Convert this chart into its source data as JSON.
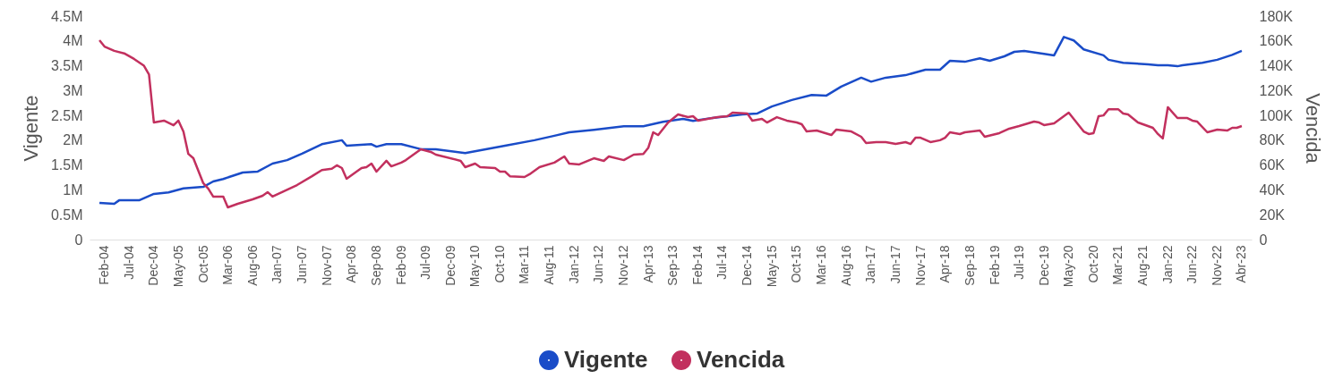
{
  "chart_data": {
    "type": "line",
    "ylabel": "Vigente",
    "y2label": "Vencida",
    "legend": "bottom",
    "xlim": [
      "2003-11",
      "2023-06"
    ],
    "xticks": [
      {
        "value": "2004-02",
        "label": "Feb-04"
      },
      {
        "value": "2004-07",
        "label": "Jul-04"
      },
      {
        "value": "2004-12",
        "label": "Dec-04"
      },
      {
        "value": "2005-05",
        "label": "May-05"
      },
      {
        "value": "2005-10",
        "label": "Oct-05"
      },
      {
        "value": "2006-03",
        "label": "Mar-06"
      },
      {
        "value": "2006-08",
        "label": "Aug-06"
      },
      {
        "value": "2007-01",
        "label": "Jan-07"
      },
      {
        "value": "2007-06",
        "label": "Jun-07"
      },
      {
        "value": "2007-11",
        "label": "Nov-07"
      },
      {
        "value": "2008-04",
        "label": "Apr-08"
      },
      {
        "value": "2008-09",
        "label": "Sep-08"
      },
      {
        "value": "2009-02",
        "label": "Feb-09"
      },
      {
        "value": "2009-07",
        "label": "Jul-09"
      },
      {
        "value": "2009-12",
        "label": "Dec-09"
      },
      {
        "value": "2010-05",
        "label": "May-10"
      },
      {
        "value": "2010-10",
        "label": "Oct-10"
      },
      {
        "value": "2011-03",
        "label": "Mar-11"
      },
      {
        "value": "2011-08",
        "label": "Aug-11"
      },
      {
        "value": "2012-01",
        "label": "Jan-12"
      },
      {
        "value": "2012-06",
        "label": "Jun-12"
      },
      {
        "value": "2012-11",
        "label": "Nov-12"
      },
      {
        "value": "2013-04",
        "label": "Apr-13"
      },
      {
        "value": "2013-09",
        "label": "Sep-13"
      },
      {
        "value": "2014-02",
        "label": "Feb-14"
      },
      {
        "value": "2014-07",
        "label": "Jul-14"
      },
      {
        "value": "2014-12",
        "label": "Dec-14"
      },
      {
        "value": "2015-05",
        "label": "May-15"
      },
      {
        "value": "2015-10",
        "label": "Oct-15"
      },
      {
        "value": "2016-03",
        "label": "Mar-16"
      },
      {
        "value": "2016-08",
        "label": "Aug-16"
      },
      {
        "value": "2017-01",
        "label": "Jan-17"
      },
      {
        "value": "2017-06",
        "label": "Jun-17"
      },
      {
        "value": "2017-11",
        "label": "Nov-17"
      },
      {
        "value": "2018-04",
        "label": "Apr-18"
      },
      {
        "value": "2018-09",
        "label": "Sep-18"
      },
      {
        "value": "2019-02",
        "label": "Feb-19"
      },
      {
        "value": "2019-07",
        "label": "Jul-19"
      },
      {
        "value": "2019-12",
        "label": "Dec-19"
      },
      {
        "value": "2020-05",
        "label": "May-20"
      },
      {
        "value": "2020-10",
        "label": "Oct-20"
      },
      {
        "value": "2021-03",
        "label": "Mar-21"
      },
      {
        "value": "2021-08",
        "label": "Aug-21"
      },
      {
        "value": "2022-01",
        "label": "Jan-22"
      },
      {
        "value": "2022-06",
        "label": "Jun-22"
      },
      {
        "value": "2022-11",
        "label": "Nov-22"
      },
      {
        "value": "2023-04",
        "label": "Abr-23"
      }
    ],
    "ylim": [
      0,
      4500000
    ],
    "yticks": [
      0,
      {
        "value": 500000,
        "label": "0.5M"
      },
      {
        "value": 1000000,
        "label": "1M"
      },
      {
        "value": 1500000,
        "label": "1.5M"
      },
      {
        "value": 2000000,
        "label": "2M"
      },
      {
        "value": 2500000,
        "label": "2.5M"
      },
      {
        "value": 3000000,
        "label": "3M"
      },
      {
        "value": 3500000,
        "label": "3.5M"
      },
      {
        "value": 4000000,
        "label": "4M"
      },
      {
        "value": 4500000,
        "label": "4.5M"
      }
    ],
    "y2lim": [
      0,
      180000
    ],
    "y2ticks": [
      0,
      {
        "value": 20000,
        "label": "20K"
      },
      {
        "value": 40000,
        "label": "40K"
      },
      {
        "value": 60000,
        "label": "60K"
      },
      {
        "value": 80000,
        "label": "80K"
      },
      {
        "value": 100000,
        "label": "100K"
      },
      {
        "value": 120000,
        "label": "120K"
      },
      {
        "value": 140000,
        "label": "140K"
      },
      {
        "value": 160000,
        "label": "160K"
      },
      {
        "value": 180000,
        "label": "180K"
      }
    ],
    "series": [
      {
        "name": "Vigente",
        "color": "#1a4cc8",
        "x": [
          "2004-01",
          "2004-04",
          "2004-05",
          "2004-09",
          "2004-12",
          "2005-03",
          "2005-06",
          "2005-10",
          "2005-12",
          "2006-02",
          "2006-06",
          "2006-09",
          "2006-12",
          "2007-03",
          "2007-06",
          "2007-10",
          "2008-02",
          "2008-03",
          "2008-08",
          "2008-09",
          "2008-11",
          "2009-02",
          "2009-06",
          "2009-09",
          "2010-03",
          "2010-11",
          "2011-05",
          "2011-09",
          "2011-12",
          "2012-05",
          "2012-11",
          "2013-03",
          "2013-07",
          "2013-11",
          "2014-01",
          "2014-05",
          "2014-11",
          "2015-02",
          "2015-05",
          "2015-09",
          "2016-01",
          "2016-04",
          "2016-07",
          "2016-11",
          "2017-01",
          "2017-04",
          "2017-08",
          "2017-12",
          "2018-03",
          "2018-05",
          "2018-08",
          "2018-11",
          "2019-01",
          "2019-04",
          "2019-06",
          "2019-08",
          "2019-12",
          "2020-02",
          "2020-04",
          "2020-06",
          "2020-08",
          "2020-12",
          "2021-01",
          "2021-04",
          "2021-09",
          "2021-11",
          "2022-01",
          "2022-03",
          "2022-04",
          "2022-08",
          "2022-11",
          "2023-02",
          "2023-04"
        ],
        "values": [
          740000,
          720000,
          790000,
          790000,
          920000,
          950000,
          1030000,
          1060000,
          1170000,
          1220000,
          1350000,
          1370000,
          1530000,
          1600000,
          1730000,
          1920000,
          2000000,
          1890000,
          1920000,
          1870000,
          1920000,
          1920000,
          1820000,
          1820000,
          1740000,
          1890000,
          2000000,
          2090000,
          2160000,
          2210000,
          2280000,
          2280000,
          2370000,
          2430000,
          2390000,
          2450000,
          2520000,
          2540000,
          2680000,
          2810000,
          2910000,
          2900000,
          3080000,
          3260000,
          3180000,
          3260000,
          3310000,
          3420000,
          3420000,
          3600000,
          3580000,
          3650000,
          3600000,
          3690000,
          3780000,
          3800000,
          3740000,
          3710000,
          4080000,
          4010000,
          3830000,
          3710000,
          3620000,
          3560000,
          3530000,
          3510000,
          3510000,
          3490000,
          3510000,
          3560000,
          3620000,
          3720000,
          3800000
        ]
      },
      {
        "name": "Vencida",
        "color": "#c2305e",
        "axis": "y2",
        "x": [
          "2004-01",
          "2004-02",
          "2004-04",
          "2004-06",
          "2004-08",
          "2004-10",
          "2004-11",
          "2004-12",
          "2005-02",
          "2005-04",
          "2005-05",
          "2005-06",
          "2005-07",
          "2005-08",
          "2005-10",
          "2005-11",
          "2005-12",
          "2006-02",
          "2006-03",
          "2006-05",
          "2006-08",
          "2006-10",
          "2006-11",
          "2006-12",
          "2007-05",
          "2007-08",
          "2007-10",
          "2007-12",
          "2008-01",
          "2008-02",
          "2008-03",
          "2008-05",
          "2008-06",
          "2008-07",
          "2008-08",
          "2008-09",
          "2008-11",
          "2008-12",
          "2009-02",
          "2009-03",
          "2009-06",
          "2009-08",
          "2009-09",
          "2010-02",
          "2010-03",
          "2010-05",
          "2010-06",
          "2010-09",
          "2010-10",
          "2010-11",
          "2010-12",
          "2011-03",
          "2011-04",
          "2011-06",
          "2011-09",
          "2011-11",
          "2011-12",
          "2012-02",
          "2012-05",
          "2012-07",
          "2012-08",
          "2012-11",
          "2013-01",
          "2013-03",
          "2013-04",
          "2013-05",
          "2013-06",
          "2013-08",
          "2013-10",
          "2013-12",
          "2014-01",
          "2014-02",
          "2014-04",
          "2014-06",
          "2014-08",
          "2014-09",
          "2014-12",
          "2015-01",
          "2015-03",
          "2015-04",
          "2015-06",
          "2015-08",
          "2015-10",
          "2015-11",
          "2015-12",
          "2016-02",
          "2016-05",
          "2016-06",
          "2016-09",
          "2016-11",
          "2016-12",
          "2017-02",
          "2017-04",
          "2017-06",
          "2017-08",
          "2017-09",
          "2017-10",
          "2017-11",
          "2018-01",
          "2018-03",
          "2018-04",
          "2018-05",
          "2018-07",
          "2018-08",
          "2018-11",
          "2018-12",
          "2019-03",
          "2019-05",
          "2019-07",
          "2019-10",
          "2019-11",
          "2019-12",
          "2020-02",
          "2020-05",
          "2020-08",
          "2020-09",
          "2020-10",
          "2020-11",
          "2020-12",
          "2021-01",
          "2021-03",
          "2021-04",
          "2021-05",
          "2021-07",
          "2021-10",
          "2021-11",
          "2021-12",
          "2022-01",
          "2022-03",
          "2022-05",
          "2022-06",
          "2022-07",
          "2022-09",
          "2022-11",
          "2023-01",
          "2023-02",
          "2023-03",
          "2023-04"
        ],
        "values": [
          160500,
          155500,
          152000,
          150000,
          145500,
          140000,
          133000,
          94300,
          95800,
          92000,
          95800,
          87000,
          69000,
          65500,
          45400,
          41000,
          34600,
          34600,
          25900,
          28800,
          32400,
          35300,
          38200,
          34600,
          43900,
          51000,
          56000,
          57000,
          59800,
          57600,
          49000,
          54700,
          57600,
          58300,
          61200,
          54700,
          63400,
          59000,
          62000,
          64000,
          72700,
          70600,
          68400,
          63400,
          58300,
          61200,
          58300,
          57600,
          54700,
          54700,
          51000,
          50400,
          52600,
          58300,
          62000,
          67000,
          61200,
          60500,
          65500,
          63400,
          67000,
          64000,
          68400,
          69000,
          74000,
          86400,
          84200,
          94300,
          100800,
          98600,
          99400,
          95800,
          97200,
          98600,
          99400,
          102200,
          101500,
          95800,
          97200,
          94300,
          98600,
          95800,
          94300,
          92900,
          87100,
          87800,
          84200,
          88600,
          87100,
          82800,
          77800,
          78500,
          78500,
          77000,
          78500,
          77000,
          82000,
          82000,
          78500,
          80000,
          82000,
          86400,
          85000,
          86400,
          87800,
          82800,
          85700,
          89300,
          91400,
          95000,
          94300,
          92200,
          93600,
          102200,
          87100,
          85000,
          85700,
          99400,
          100000,
          105000,
          105000,
          101500,
          100800,
          94300,
          90000,
          85000,
          81400,
          106600,
          97900,
          97900,
          95800,
          95000,
          86400,
          88600,
          87800,
          90000,
          90000,
          91400
        ]
      }
    ]
  }
}
